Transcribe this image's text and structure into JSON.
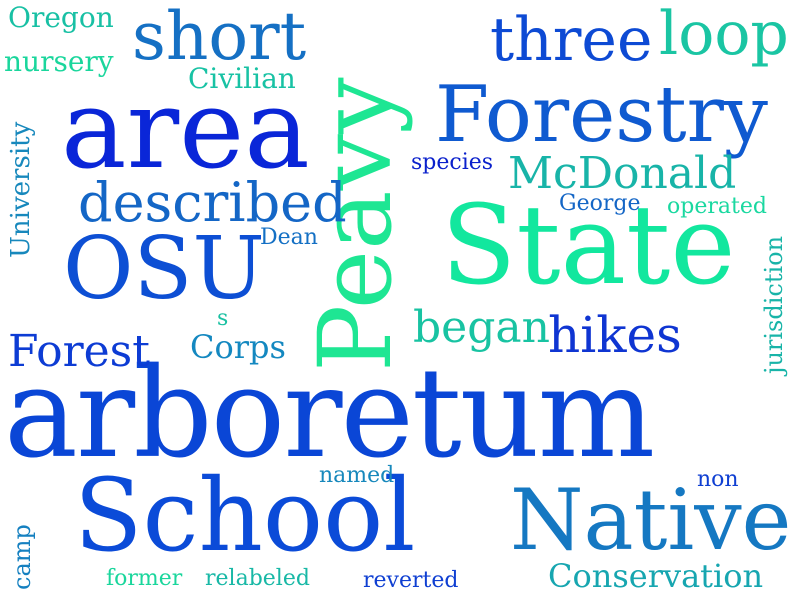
{
  "words": [
    {
      "text": "arboretum",
      "color": "#0a46d6"
    },
    {
      "text": "School",
      "color": "#0b4bd8"
    },
    {
      "text": "Peavy",
      "color": "#1ee693"
    },
    {
      "text": "State",
      "color": "#12e79e"
    },
    {
      "text": "area",
      "color": "#0a26d8"
    },
    {
      "text": "Forestry",
      "color": "#0f5ad0"
    },
    {
      "text": "Native",
      "color": "#1578c2"
    },
    {
      "text": "OSU",
      "color": "#0d4fd4"
    },
    {
      "text": "short",
      "color": "#1570c4"
    },
    {
      "text": "three",
      "color": "#0d4ad4"
    },
    {
      "text": "loop",
      "color": "#1ac5a3"
    },
    {
      "text": "described",
      "color": "#1466c6"
    },
    {
      "text": "McDonald",
      "color": "#18b4a8"
    },
    {
      "text": "hikes",
      "color": "#0f35d2"
    },
    {
      "text": "Forest",
      "color": "#0d3cd4"
    },
    {
      "text": "Conservation",
      "color": "#17a6b0"
    },
    {
      "text": "began",
      "color": "#18c3a2"
    },
    {
      "text": "Corps",
      "color": "#1488c0"
    },
    {
      "text": "Oregon",
      "color": "#18c0a4"
    },
    {
      "text": "nursery",
      "color": "#1ad69c"
    },
    {
      "text": "Civilian",
      "color": "#18c2a4"
    },
    {
      "text": "University",
      "color": "#1788bc"
    },
    {
      "text": "species",
      "color": "#0a20cc"
    },
    {
      "text": "George",
      "color": "#1466c6"
    },
    {
      "text": "operated",
      "color": "#1ad8a0"
    },
    {
      "text": "Dean",
      "color": "#1470c4"
    },
    {
      "text": "jurisdiction",
      "color": "#18b4a8"
    },
    {
      "text": "s",
      "color": "#1ac0a2"
    },
    {
      "text": "named",
      "color": "#1788bc"
    },
    {
      "text": "non",
      "color": "#0f3fd2"
    },
    {
      "text": "camp",
      "color": "#1580c0"
    },
    {
      "text": "former",
      "color": "#1ad69c"
    },
    {
      "text": "relabeled",
      "color": "#18b8a6"
    },
    {
      "text": "reverted",
      "color": "#0f3fd2"
    }
  ]
}
